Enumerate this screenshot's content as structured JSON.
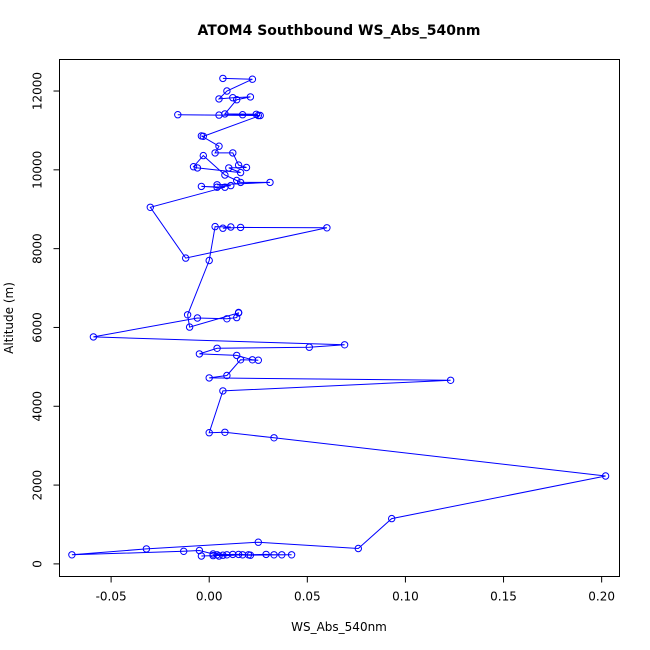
{
  "chart_data": {
    "type": "line",
    "title": "ATOM4 Southbound WS_Abs_540nm",
    "xlabel": "WS_Abs_540nm",
    "ylabel": "Altitude (m)",
    "xlim": [
      -0.0763,
      0.2091
    ],
    "ylim": [
      -320,
      12800
    ],
    "x_ticks": [
      -0.05,
      0.0,
      0.05,
      0.1,
      0.15,
      0.2
    ],
    "x_tick_labels": [
      "-0.05",
      "0.00",
      "0.05",
      "0.10",
      "0.15",
      "0.20"
    ],
    "y_ticks": [
      0,
      2000,
      4000,
      6000,
      8000,
      10000,
      12000
    ],
    "y_tick_labels": [
      "0",
      "2000",
      "4000",
      "6000",
      "8000",
      "10000",
      "12000"
    ],
    "grid": false,
    "series_color": "#0000ff",
    "series": [
      {
        "x": [
          0.007,
          0.022,
          0.009,
          0.005,
          0.012,
          0.021,
          0.014,
          0.008,
          0.024,
          0.025,
          0.017,
          0.005,
          -0.016,
          0.026,
          -0.003,
          -0.004,
          0.005,
          0.003,
          0.012,
          0.015,
          0.019,
          0.01,
          0.016,
          -0.006,
          -0.008,
          -0.003,
          0.008,
          0.014,
          0.016,
          0.031,
          0.004,
          0.011,
          0.004,
          -0.004,
          0.008,
          -0.03,
          -0.012,
          0.06,
          0.016,
          0.007,
          0.011,
          0.003,
          0.0,
          -0.011,
          -0.01,
          0.015,
          0.015,
          0.014,
          0.009,
          -0.006,
          -0.059,
          0.069,
          0.051,
          0.004,
          -0.005,
          0.014,
          0.022,
          0.025,
          0.016,
          0.009,
          0.0,
          0.123,
          0.007,
          0.0,
          0.008,
          0.033,
          0.202,
          0.093,
          0.076,
          0.025,
          -0.032,
          -0.07,
          -0.013,
          -0.005,
          0.002,
          0.021,
          0.042,
          0.037,
          0.033,
          0.029,
          0.02,
          0.015,
          0.012,
          0.009,
          0.007,
          0.004,
          0.002,
          -0.004,
          0.017,
          0.005
        ],
        "y": [
          12320,
          12300,
          12000,
          11800,
          11830,
          11850,
          11780,
          11420,
          11410,
          11380,
          11400,
          11390,
          11400,
          11380,
          10850,
          10860,
          10600,
          10430,
          10430,
          10120,
          10060,
          10050,
          9930,
          10050,
          10080,
          10360,
          9870,
          9730,
          9680,
          9680,
          9620,
          9600,
          9560,
          9580,
          9560,
          9050,
          7760,
          8530,
          8540,
          8520,
          8550,
          8560,
          7700,
          6320,
          6010,
          6370,
          6380,
          6250,
          6220,
          6240,
          5760,
          5560,
          5500,
          5470,
          5330,
          5290,
          5180,
          5170,
          5180,
          4780,
          4720,
          4660,
          4390,
          3330,
          3340,
          3200,
          2230,
          1150,
          390,
          550,
          380,
          230,
          320,
          340,
          250,
          220,
          230,
          230,
          230,
          240,
          230,
          240,
          240,
          230,
          220,
          230,
          210,
          200,
          230,
          200
        ]
      }
    ]
  }
}
